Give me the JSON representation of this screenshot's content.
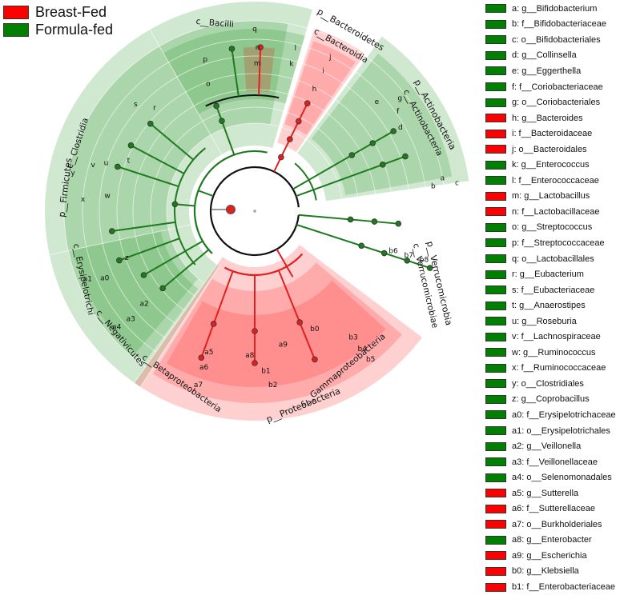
{
  "colors": {
    "breast_fed": "#ff0000",
    "formula_fed": "#008000",
    "breast_fed_node": "#e02020",
    "formula_fed_node": "#1f7a1f"
  },
  "top_legend": [
    {
      "label": "Breast-Fed",
      "group": "breast_fed"
    },
    {
      "label": "Formula-fed",
      "group": "formula_fed"
    }
  ],
  "key_legend": [
    {
      "label": "a: g__Bifidobacterium",
      "group": "formula_fed"
    },
    {
      "label": "b: f__Bifidobacteriaceae",
      "group": "formula_fed"
    },
    {
      "label": "c: o__Bifidobacteriales",
      "group": "formula_fed"
    },
    {
      "label": "d: g__Collinsella",
      "group": "formula_fed"
    },
    {
      "label": "e: g__Eggerthella",
      "group": "formula_fed"
    },
    {
      "label": "f: f__Coriobacteriaceae",
      "group": "formula_fed"
    },
    {
      "label": "g: o__Coriobacteriales",
      "group": "formula_fed"
    },
    {
      "label": "h: g__Bacteroides",
      "group": "breast_fed"
    },
    {
      "label": "i: f__Bacteroidaceae",
      "group": "breast_fed"
    },
    {
      "label": "j: o__Bacteroidales",
      "group": "breast_fed"
    },
    {
      "label": "k: g__Enterococcus",
      "group": "formula_fed"
    },
    {
      "label": "l: f__Enterococcaceae",
      "group": "formula_fed"
    },
    {
      "label": "m: g__Lactobacillus",
      "group": "breast_fed"
    },
    {
      "label": "n: f__Lactobacillaceae",
      "group": "breast_fed"
    },
    {
      "label": "o: g__Streptococcus",
      "group": "formula_fed"
    },
    {
      "label": "p: f__Streptococcaceae",
      "group": "formula_fed"
    },
    {
      "label": "q: o__Lactobacillales",
      "group": "formula_fed"
    },
    {
      "label": "r: g__Eubacterium",
      "group": "formula_fed"
    },
    {
      "label": "s: f__Eubacteriaceae",
      "group": "formula_fed"
    },
    {
      "label": "t: g__Anaerostipes",
      "group": "formula_fed"
    },
    {
      "label": "u: g__Roseburia",
      "group": "formula_fed"
    },
    {
      "label": "v: f__Lachnospiraceae",
      "group": "formula_fed"
    },
    {
      "label": "w: g__Ruminococcus",
      "group": "formula_fed"
    },
    {
      "label": "x: f__Ruminococcaceae",
      "group": "formula_fed"
    },
    {
      "label": "y: o__Clostridiales",
      "group": "formula_fed"
    },
    {
      "label": "z: g__Coprobacillus",
      "group": "formula_fed"
    },
    {
      "label": "a0: f__Erysipelotrichaceae",
      "group": "formula_fed"
    },
    {
      "label": "a1: o__Erysipelotrichales",
      "group": "formula_fed"
    },
    {
      "label": "a2: g__Veillonella",
      "group": "formula_fed"
    },
    {
      "label": "a3: f__Veillonellaceae",
      "group": "formula_fed"
    },
    {
      "label": "a4: o__Selenomonadales",
      "group": "formula_fed"
    },
    {
      "label": "a5: g__Sutterella",
      "group": "breast_fed"
    },
    {
      "label": "a6: f__Sutterellaceae",
      "group": "breast_fed"
    },
    {
      "label": "a7: o__Burkholderiales",
      "group": "breast_fed"
    },
    {
      "label": "a8: g__Enterobacter",
      "group": "formula_fed"
    },
    {
      "label": "a9: g__Escherichia",
      "group": "breast_fed"
    },
    {
      "label": "b0: g__Klebsiella",
      "group": "breast_fed"
    },
    {
      "label": "b1: f__Enterobacteriaceae",
      "group": "breast_fed"
    }
  ],
  "phylum_labels": {
    "firmicutes": "p__Firmicutes",
    "bacteroidetes": "p__Bacteroidetes",
    "actinobacteria": "p__Actinobacteria",
    "verrucomicrobia": "p__Verrucomicrobia",
    "proteobacteria": "p__Proteobacteria"
  },
  "class_labels": {
    "clostridia": "c__Clostridia",
    "bacilli": "c__Bacilli",
    "bacteroidia": "c__Bacteroidia",
    "actinobacteria": "c__Actinobacteria",
    "verrucomicrobiae": "c__Verrucomicrobiae",
    "gammaproteobacteria": "c__Gammaproteobacteria",
    "betaproteobacteria": "c__Betaproteobacteria",
    "negativicutes": "c__Negativicutes",
    "erysipelotrichi": "c__Erysipelotrichi"
  },
  "clade_letters": {
    "a": "a",
    "b": "b",
    "c": "c",
    "d": "d",
    "e": "e",
    "f": "f",
    "g": "g",
    "h": "h",
    "i": "i",
    "j": "j",
    "k": "k",
    "l": "l",
    "m": "m",
    "n": "n",
    "o": "o",
    "p": "p",
    "q": "q",
    "r": "r",
    "s": "s",
    "t": "t",
    "u": "u",
    "v": "v",
    "w": "w",
    "x": "x",
    "y": "y",
    "z": "z",
    "a0": "a0",
    "a1": "a1",
    "a2": "a2",
    "a3": "a3",
    "a4": "a4",
    "a5": "a5",
    "a6": "a6",
    "a7": "a7",
    "a8": "a8",
    "a9": "a9",
    "b0": "b0",
    "b1": "b1",
    "b2": "b2",
    "b3": "b3",
    "b4": "b4",
    "b5": "b5",
    "b6": "b6",
    "b7": "b7",
    "b8": "b8"
  }
}
